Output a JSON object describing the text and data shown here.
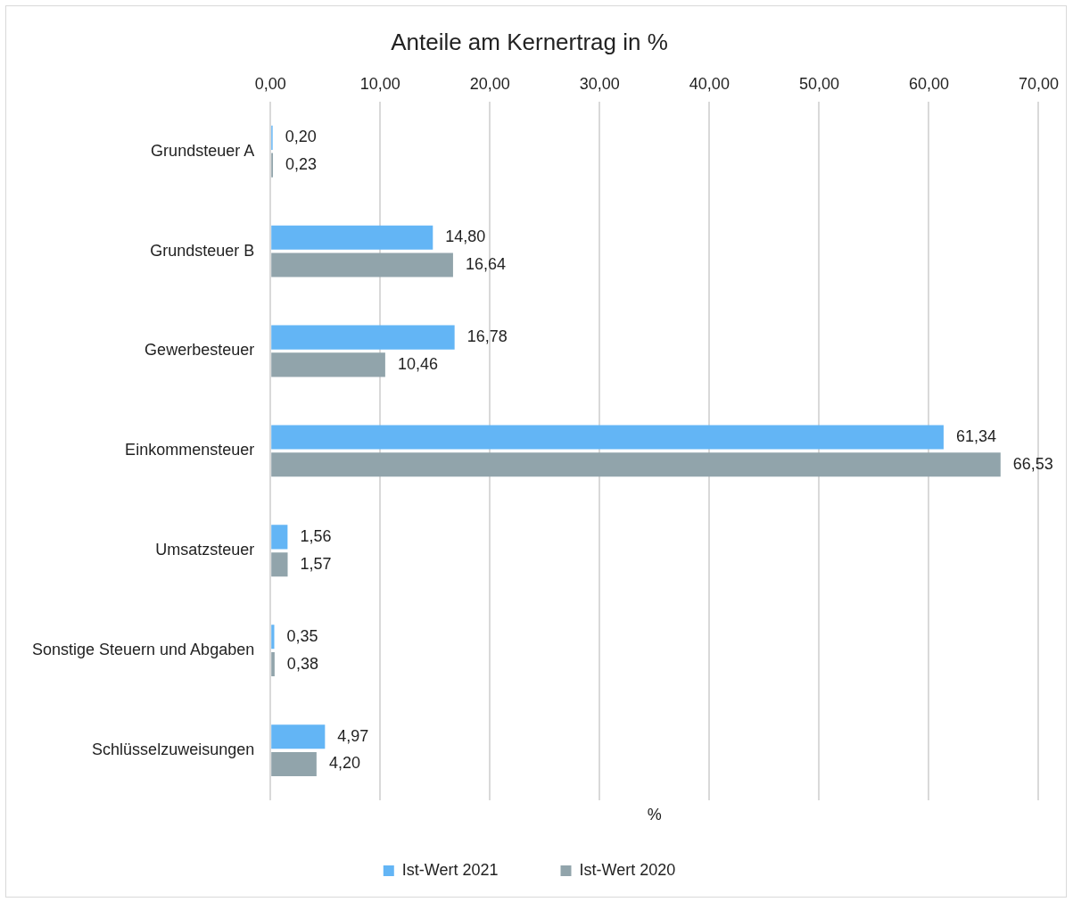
{
  "chart_data": {
    "type": "bar",
    "orientation": "horizontal",
    "title": "Anteile am Kernertrag in %",
    "xlabel": "%",
    "categories": [
      "Grundsteuer A",
      "Grundsteuer B",
      "Gewerbesteuer",
      "Einkommensteuer",
      "Umsatzsteuer",
      "Sonstige Steuern und Abgaben",
      "Schlüsselzuweisungen"
    ],
    "series": [
      {
        "name": "Ist-Wert 2021",
        "color": "#63b5f5",
        "values": [
          0.2,
          14.8,
          16.78,
          61.34,
          1.56,
          0.35,
          4.97
        ],
        "value_labels": [
          "0,20",
          "14,80",
          "16,78",
          "61,34",
          "1,56",
          "0,35",
          "4,97"
        ]
      },
      {
        "name": "Ist-Wert 2020",
        "color": "#91a4ab",
        "values": [
          0.23,
          16.64,
          10.46,
          66.53,
          1.57,
          0.38,
          4.2
        ],
        "value_labels": [
          "0,23",
          "16,64",
          "10,46",
          "66,53",
          "1,57",
          "0,38",
          "4,20"
        ]
      }
    ],
    "xlim": [
      0,
      70
    ],
    "xticks": [
      {
        "value": 0,
        "label": "0,00"
      },
      {
        "value": 10,
        "label": "10,00"
      },
      {
        "value": 20,
        "label": "20,00"
      },
      {
        "value": 30,
        "label": "30,00"
      },
      {
        "value": 40,
        "label": "40,00"
      },
      {
        "value": 50,
        "label": "50,00"
      },
      {
        "value": 60,
        "label": "60,00"
      },
      {
        "value": 70,
        "label": "70,00"
      }
    ],
    "grid": "x",
    "legend": "bottom"
  }
}
